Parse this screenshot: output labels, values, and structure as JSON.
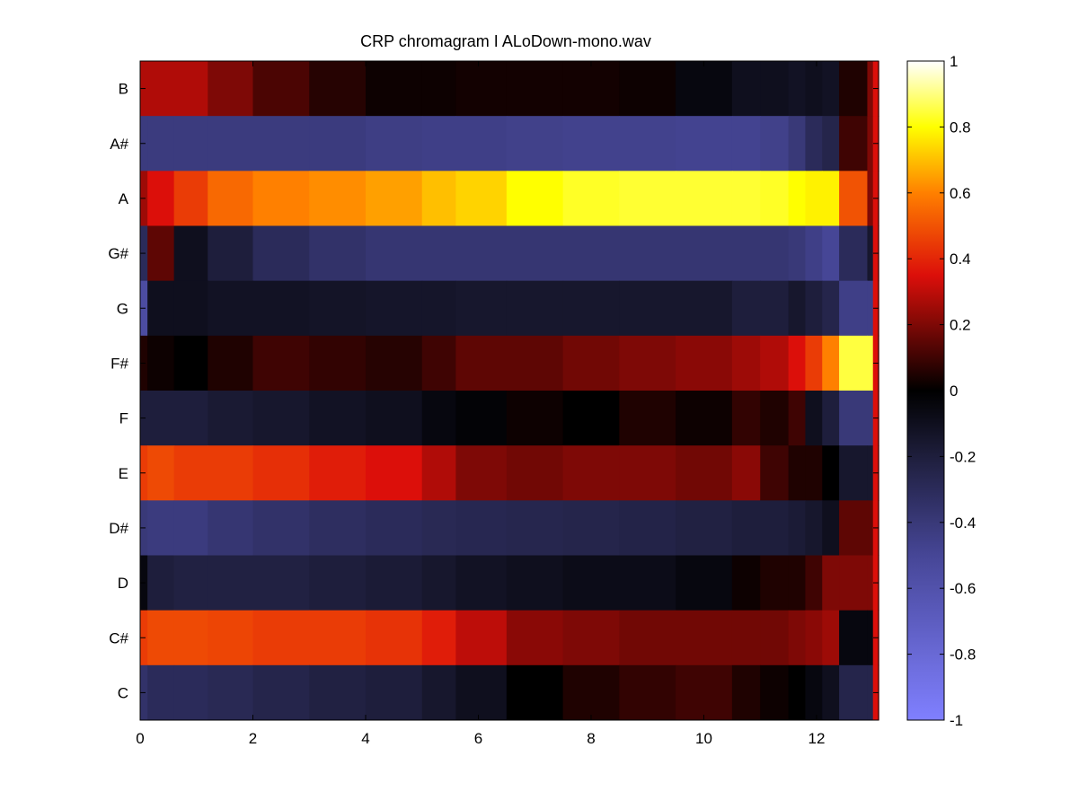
{
  "chart_data": {
    "type": "heatmap",
    "title": "CRP chromagram I ALoDown-mono.wav",
    "xlabel": "",
    "ylabel": "",
    "xlim": [
      0,
      13.1
    ],
    "x_ticks": [
      "0",
      "2",
      "4",
      "6",
      "8",
      "10",
      "12"
    ],
    "x_tick_values": [
      0,
      2,
      4,
      6,
      8,
      10,
      12
    ],
    "rows": [
      "B",
      "A#",
      "A",
      "G#",
      "G",
      "F#",
      "F",
      "E",
      "D#",
      "D",
      "C#",
      "C"
    ],
    "colorbar": {
      "clim": [
        -1,
        1
      ],
      "ticks": [
        "1",
        "0.8",
        "0.6",
        "0.4",
        "0.2",
        "0",
        "-0.2",
        "-0.4",
        "-0.6",
        "-0.8",
        "-1"
      ],
      "tick_values": [
        1,
        0.8,
        0.6,
        0.4,
        0.2,
        0,
        -0.2,
        -0.4,
        -0.6,
        -0.8,
        -1
      ],
      "colormap": "hot-to-blue diverging"
    },
    "time_breakpoints": [
      0,
      0.13,
      0.6,
      1.2,
      2.0,
      3.0,
      4.0,
      5.0,
      5.6,
      6.5,
      7.5,
      8.5,
      9.5,
      10.5,
      11.0,
      11.5,
      11.8,
      12.1,
      12.4,
      12.9,
      13.0,
      13.1
    ],
    "row_values": {
      "B": [
        0.28,
        0.28,
        0.28,
        0.2,
        0.12,
        0.06,
        0.02,
        0.02,
        0.03,
        0.03,
        0.03,
        0.02,
        -0.05,
        -0.1,
        -0.1,
        -0.12,
        -0.1,
        -0.12,
        0.05,
        0.2,
        0.35,
        0.35
      ],
      "A#": [
        -0.42,
        -0.42,
        -0.42,
        -0.42,
        -0.42,
        -0.42,
        -0.44,
        -0.45,
        -0.45,
        -0.46,
        -0.47,
        -0.47,
        -0.48,
        -0.48,
        -0.46,
        -0.4,
        -0.3,
        -0.25,
        0.1,
        0.2,
        0.35,
        0.35
      ],
      "A": [
        0.25,
        0.35,
        0.45,
        0.55,
        0.6,
        0.62,
        0.65,
        0.7,
        0.73,
        0.8,
        0.83,
        0.84,
        0.84,
        0.84,
        0.83,
        0.8,
        0.78,
        0.78,
        0.5,
        0.2,
        0.35,
        0.35
      ],
      "G#": [
        -0.3,
        0.15,
        -0.1,
        -0.2,
        -0.3,
        -0.35,
        -0.38,
        -0.38,
        -0.38,
        -0.38,
        -0.38,
        -0.38,
        -0.38,
        -0.38,
        -0.38,
        -0.4,
        -0.45,
        -0.5,
        -0.3,
        -0.15,
        0.35,
        0.35
      ],
      "G": [
        -0.55,
        -0.1,
        -0.1,
        -0.12,
        -0.12,
        -0.13,
        -0.14,
        -0.14,
        -0.15,
        -0.15,
        -0.15,
        -0.15,
        -0.15,
        -0.2,
        -0.2,
        -0.15,
        -0.2,
        -0.25,
        -0.45,
        -0.45,
        0.35,
        0.35
      ],
      "F#": [
        0.05,
        0.02,
        0.0,
        0.05,
        0.1,
        0.08,
        0.06,
        0.1,
        0.15,
        0.15,
        0.18,
        0.2,
        0.22,
        0.25,
        0.28,
        0.35,
        0.45,
        0.6,
        0.85,
        0.85,
        0.35,
        0.35
      ],
      "F": [
        -0.2,
        -0.2,
        -0.2,
        -0.17,
        -0.15,
        -0.12,
        -0.1,
        -0.05,
        -0.02,
        0.02,
        0.0,
        0.05,
        0.02,
        0.08,
        0.05,
        0.1,
        -0.1,
        -0.2,
        -0.4,
        -0.4,
        0.35,
        0.35
      ],
      "E": [
        0.45,
        0.48,
        0.45,
        0.45,
        0.42,
        0.38,
        0.35,
        0.28,
        0.2,
        0.18,
        0.2,
        0.2,
        0.18,
        0.22,
        0.1,
        0.05,
        0.05,
        0.0,
        -0.15,
        -0.15,
        0.35,
        0.35
      ],
      "D#": [
        -0.4,
        -0.42,
        -0.42,
        -0.38,
        -0.35,
        -0.32,
        -0.3,
        -0.28,
        -0.27,
        -0.26,
        -0.25,
        -0.24,
        -0.22,
        -0.2,
        -0.2,
        -0.18,
        -0.15,
        -0.1,
        0.15,
        0.15,
        0.35,
        0.35
      ],
      "D": [
        -0.05,
        -0.2,
        -0.22,
        -0.22,
        -0.22,
        -0.2,
        -0.18,
        -0.15,
        -0.12,
        -0.1,
        -0.08,
        -0.08,
        -0.05,
        0.02,
        0.05,
        0.05,
        0.1,
        0.2,
        0.2,
        0.2,
        0.35,
        0.35
      ],
      "C#": [
        0.45,
        0.48,
        0.48,
        0.47,
        0.45,
        0.45,
        0.43,
        0.38,
        0.3,
        0.22,
        0.2,
        0.18,
        0.18,
        0.18,
        0.18,
        0.2,
        0.22,
        0.25,
        -0.05,
        -0.05,
        0.35,
        0.35
      ],
      "C": [
        -0.35,
        -0.3,
        -0.3,
        -0.28,
        -0.25,
        -0.22,
        -0.2,
        -0.15,
        -0.1,
        0.0,
        0.05,
        0.08,
        0.1,
        0.05,
        0.02,
        0.0,
        -0.05,
        -0.1,
        -0.25,
        -0.25,
        0.35,
        0.35
      ]
    }
  }
}
